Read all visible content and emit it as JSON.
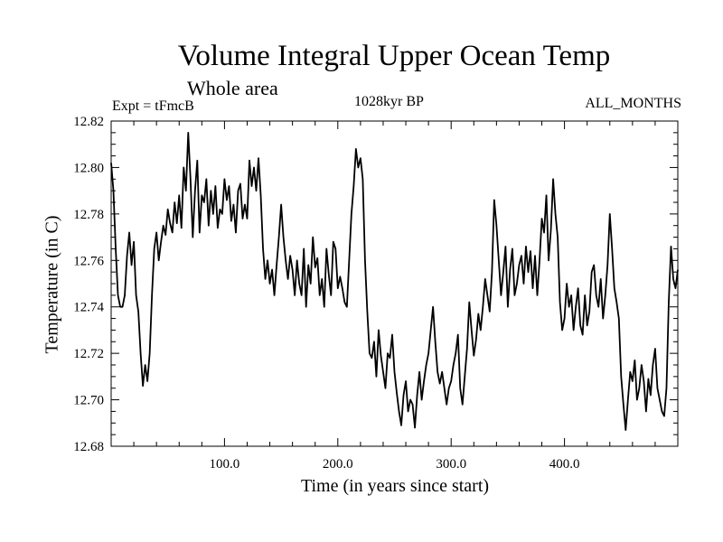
{
  "chart_data": {
    "type": "line",
    "title": "Volume Integral Upper Ocean Temp",
    "subtitle": "Whole area",
    "annotations": {
      "experiment": "Expt = tFmcB",
      "period": "1028kyr BP",
      "months": "ALL_MONTHS"
    },
    "xlabel": "Time (in years since start)",
    "ylabel": "Temperature (in C)",
    "xlim": [
      0,
      500
    ],
    "ylim": [
      12.68,
      12.82
    ],
    "x_ticks": [
      100,
      200,
      300,
      400
    ],
    "x_tick_labels": [
      "100.0",
      "200.0",
      "300.0",
      "400.0"
    ],
    "y_ticks": [
      12.68,
      12.7,
      12.72,
      12.74,
      12.76,
      12.78,
      12.8,
      12.82
    ],
    "y_tick_labels": [
      "12.68",
      "12.70",
      "12.72",
      "12.74",
      "12.76",
      "12.78",
      "12.80",
      "12.82"
    ],
    "grid": false,
    "series": [
      {
        "name": "Temperature",
        "x": [
          0,
          2,
          4,
          6,
          8,
          10,
          12,
          14,
          16,
          18,
          20,
          22,
          24,
          26,
          28,
          30,
          32,
          34,
          36,
          38,
          40,
          42,
          44,
          46,
          48,
          50,
          52,
          54,
          56,
          58,
          60,
          62,
          64,
          66,
          68,
          70,
          72,
          74,
          76,
          78,
          80,
          82,
          84,
          86,
          88,
          90,
          92,
          94,
          96,
          98,
          100,
          102,
          104,
          106,
          108,
          110,
          112,
          114,
          116,
          118,
          120,
          122,
          124,
          126,
          128,
          130,
          132,
          134,
          136,
          138,
          140,
          142,
          144,
          146,
          148,
          150,
          152,
          154,
          156,
          158,
          160,
          162,
          164,
          166,
          168,
          170,
          172,
          174,
          176,
          178,
          180,
          182,
          184,
          186,
          188,
          190,
          192,
          194,
          196,
          198,
          200,
          202,
          204,
          206,
          208,
          210,
          212,
          214,
          216,
          218,
          220,
          222,
          224,
          226,
          228,
          230,
          232,
          234,
          236,
          238,
          240,
          242,
          244,
          246,
          248,
          250,
          252,
          254,
          256,
          258,
          260,
          262,
          264,
          266,
          268,
          270,
          272,
          274,
          276,
          278,
          280,
          282,
          284,
          286,
          288,
          290,
          292,
          294,
          296,
          298,
          300,
          302,
          304,
          306,
          308,
          310,
          312,
          314,
          316,
          318,
          320,
          322,
          324,
          326,
          328,
          330,
          332,
          334,
          336,
          338,
          340,
          342,
          344,
          346,
          348,
          350,
          352,
          354,
          356,
          358,
          360,
          362,
          364,
          366,
          368,
          370,
          372,
          374,
          376,
          378,
          380,
          382,
          384,
          386,
          388,
          390,
          392,
          394,
          396,
          398,
          400,
          402,
          404,
          406,
          408,
          410,
          412,
          414,
          416,
          418,
          420,
          422,
          424,
          426,
          428,
          430,
          432,
          434,
          436,
          438,
          440,
          442,
          444,
          446,
          448,
          450,
          452,
          454,
          456,
          458,
          460,
          462,
          464,
          466,
          468,
          470,
          472,
          474,
          476,
          478,
          480,
          482,
          484,
          486,
          488,
          490,
          492,
          494,
          496,
          498,
          500
        ],
        "values": [
          12.802,
          12.79,
          12.765,
          12.745,
          12.74,
          12.74,
          12.745,
          12.762,
          12.772,
          12.758,
          12.768,
          12.745,
          12.738,
          12.72,
          12.706,
          12.715,
          12.708,
          12.72,
          12.745,
          12.765,
          12.772,
          12.76,
          12.768,
          12.775,
          12.771,
          12.782,
          12.776,
          12.772,
          12.785,
          12.776,
          12.788,
          12.774,
          12.8,
          12.79,
          12.815,
          12.795,
          12.77,
          12.79,
          12.803,
          12.772,
          12.788,
          12.785,
          12.795,
          12.775,
          12.79,
          12.78,
          12.792,
          12.774,
          12.782,
          12.78,
          12.795,
          12.786,
          12.792,
          12.777,
          12.784,
          12.772,
          12.79,
          12.793,
          12.778,
          12.784,
          12.778,
          12.803,
          12.792,
          12.8,
          12.79,
          12.804,
          12.788,
          12.765,
          12.752,
          12.76,
          12.75,
          12.756,
          12.745,
          12.758,
          12.77,
          12.784,
          12.77,
          12.76,
          12.752,
          12.762,
          12.756,
          12.745,
          12.76,
          12.75,
          12.745,
          12.765,
          12.74,
          12.758,
          12.75,
          12.77,
          12.757,
          12.761,
          12.745,
          12.752,
          12.74,
          12.765,
          12.754,
          12.745,
          12.768,
          12.765,
          12.748,
          12.753,
          12.748,
          12.742,
          12.74,
          12.76,
          12.78,
          12.792,
          12.808,
          12.8,
          12.804,
          12.795,
          12.76,
          12.738,
          12.72,
          12.718,
          12.725,
          12.71,
          12.73,
          12.719,
          12.712,
          12.705,
          12.72,
          12.718,
          12.728,
          12.712,
          12.703,
          12.695,
          12.689,
          12.702,
          12.708,
          12.695,
          12.7,
          12.698,
          12.688,
          12.702,
          12.712,
          12.7,
          12.708,
          12.715,
          12.72,
          12.73,
          12.74,
          12.725,
          12.712,
          12.707,
          12.712,
          12.705,
          12.698,
          12.705,
          12.708,
          12.715,
          12.72,
          12.728,
          12.705,
          12.698,
          12.71,
          12.722,
          12.742,
          12.73,
          12.719,
          12.726,
          12.737,
          12.73,
          12.74,
          12.752,
          12.745,
          12.738,
          12.755,
          12.786,
          12.775,
          12.76,
          12.745,
          12.755,
          12.766,
          12.74,
          12.756,
          12.765,
          12.745,
          12.75,
          12.758,
          12.762,
          12.75,
          12.766,
          12.755,
          12.764,
          12.748,
          12.762,
          12.745,
          12.76,
          12.778,
          12.772,
          12.788,
          12.76,
          12.773,
          12.795,
          12.78,
          12.77,
          12.742,
          12.73,
          12.735,
          12.75,
          12.74,
          12.745,
          12.73,
          12.74,
          12.748,
          12.732,
          12.728,
          12.745,
          12.732,
          12.738,
          12.755,
          12.758,
          12.745,
          12.74,
          12.752,
          12.735,
          12.745,
          12.758,
          12.78,
          12.765,
          12.748,
          12.742,
          12.735,
          12.71,
          12.698,
          12.687,
          12.7,
          12.712,
          12.708,
          12.717,
          12.7,
          12.705,
          12.715,
          12.708,
          12.695,
          12.709,
          12.702,
          12.715,
          12.722,
          12.705,
          12.7,
          12.695,
          12.693,
          12.705,
          12.742,
          12.766,
          12.752,
          12.748,
          12.756
        ]
      }
    ]
  }
}
